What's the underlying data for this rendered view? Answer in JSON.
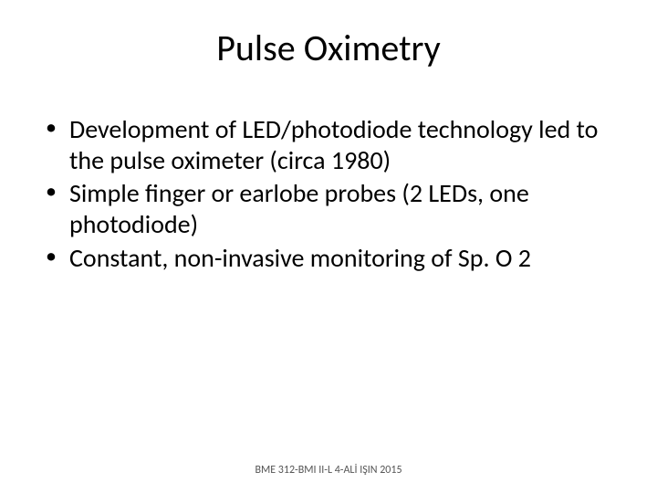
{
  "slide": {
    "title": "Pulse Oximetry",
    "title_fontsize": 40,
    "title_color": "#000000",
    "background_color": "#ffffff",
    "bullets": [
      "Development of LED/photodiode technology led to the pulse oximeter (circa 1980)",
      "Simple finger or earlobe probes (2 LEDs, one photodiode)",
      "Constant, non-invasive monitoring of Sp. O 2"
    ],
    "bullet_fontsize": 28,
    "bullet_color": "#000000",
    "footer": "BME 312-BMI II-L 4-ALİ IŞIN 2015",
    "footer_fontsize": 12,
    "footer_color": "#555555"
  }
}
